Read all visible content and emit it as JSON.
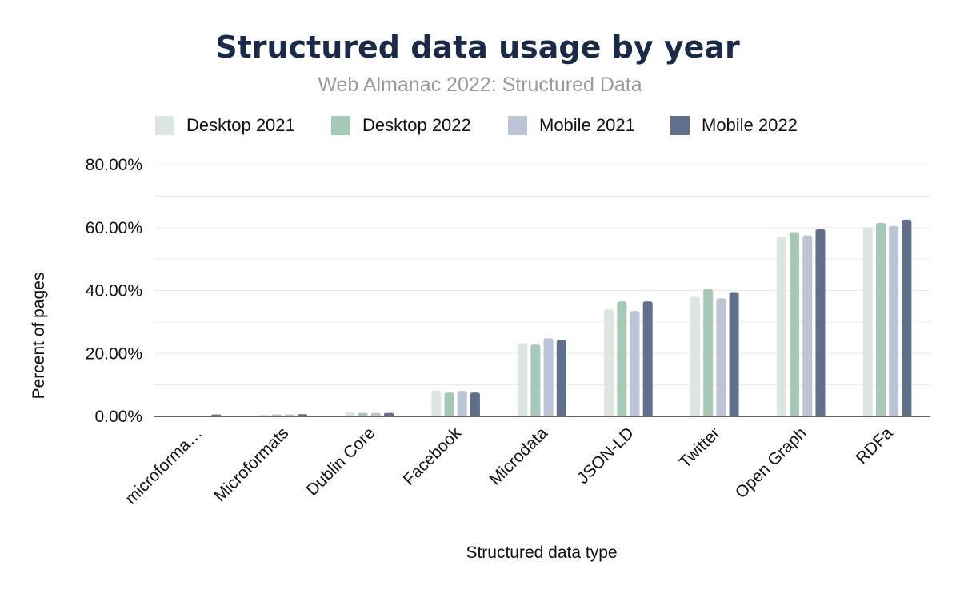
{
  "chart_data": {
    "type": "bar",
    "title": "Structured data usage by year",
    "subtitle": "Web Almanac 2022: Structured Data",
    "xlabel": "Structured data type",
    "ylabel": "Percent of pages",
    "ylim": [
      0,
      80
    ],
    "y_ticks": [
      0,
      20,
      40,
      60,
      80
    ],
    "y_tick_labels": [
      "0.00%",
      "20.00%",
      "40.00%",
      "60.00%",
      "80.00%"
    ],
    "grid": true,
    "legend_position": "top",
    "categories": [
      "microforma…",
      "Microformats",
      "Dublin Core",
      "Facebook",
      "Microdata",
      "JSON-LD",
      "Twitter",
      "Open Graph",
      "RDFa"
    ],
    "series": [
      {
        "name": "Desktop 2021",
        "color": "#dce6e1",
        "values": [
          0.1,
          0.5,
          1.3,
          8.2,
          23.3,
          34.0,
          38.0,
          57.0,
          60.0
        ]
      },
      {
        "name": "Desktop 2022",
        "color": "#a6c9b7",
        "values": [
          0.1,
          0.6,
          1.1,
          7.6,
          22.8,
          36.5,
          40.5,
          58.5,
          61.5
        ]
      },
      {
        "name": "Mobile 2021",
        "color": "#bcc5d5",
        "values": [
          0.1,
          0.6,
          1.1,
          8.1,
          24.8,
          33.5,
          37.5,
          57.5,
          60.5
        ]
      },
      {
        "name": "Mobile 2022",
        "color": "#5f6f8c",
        "values": [
          0.6,
          0.7,
          1.1,
          7.6,
          24.3,
          36.5,
          39.5,
          59.5,
          62.5
        ]
      }
    ],
    "colors": {
      "title": "#1a2b49",
      "subtitle": "#9a9a9a",
      "text": "#111111",
      "grid": "#ececec",
      "axis": "#333333"
    }
  }
}
